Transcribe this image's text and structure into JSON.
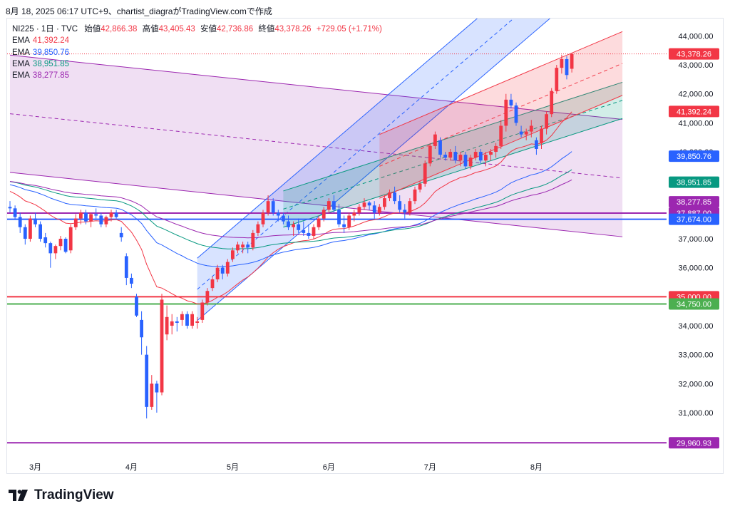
{
  "header": {
    "caption": "8月 18, 2025 06:17 UTC+9、chartist_diagraがTradingView.comで作成"
  },
  "legend": {
    "symbol": "NI225 · 1日 · TVC",
    "ohlc": [
      {
        "label": "始値",
        "value": "42,866.38"
      },
      {
        "label": "高値",
        "value": "43,405.43"
      },
      {
        "label": "安値",
        "value": "42,736.86"
      },
      {
        "label": "終値",
        "value": "43,378.26"
      }
    ],
    "change": "+729.05 (+1.71%)",
    "emas": [
      {
        "label": "EMA",
        "value": "41,392.24",
        "color": "#f23645"
      },
      {
        "label": "EMA",
        "value": "39,850.76",
        "color": "#2962ff"
      },
      {
        "label": "EMA",
        "value": "38,951.85",
        "color": "#089981"
      },
      {
        "label": "EMA",
        "value": "38,277.85",
        "color": "#9c27b0"
      }
    ]
  },
  "brand": {
    "logo_text": "TradingView"
  },
  "chart_data": {
    "type": "candlestick",
    "symbol": "NI225",
    "interval": "1日",
    "ylim": [
      29500,
      44600
    ],
    "y_ticks": [
      31000,
      32000,
      33000,
      34000,
      35000,
      36000,
      37000,
      38000,
      39000,
      40000,
      41000,
      42000,
      43000,
      44000
    ],
    "y_tick_labels": [
      "31,000.00",
      "32,000.00",
      "33,000.00",
      "34,000.00",
      "35,000.00",
      "36,000.00",
      "37,000.00",
      "38,000.00",
      "39,000.00",
      "40,000.00",
      "41,000.00",
      "42,000.00",
      "43,000.00",
      "44,000.00"
    ],
    "x_labels": [
      {
        "label": "3月",
        "bar": 5
      },
      {
        "label": "4月",
        "bar": 24
      },
      {
        "label": "5月",
        "bar": 44
      },
      {
        "label": "6月",
        "bar": 63
      },
      {
        "label": "7月",
        "bar": 83
      },
      {
        "label": "8月",
        "bar": 104
      }
    ],
    "candles": [
      [
        38100,
        38300,
        37900,
        38050
      ],
      [
        38050,
        38150,
        37650,
        37750
      ],
      [
        37750,
        37900,
        37200,
        37400
      ],
      [
        37400,
        37500,
        36800,
        37000
      ],
      [
        37000,
        37800,
        36900,
        37700
      ],
      [
        37700,
        37900,
        37400,
        37500
      ],
      [
        37500,
        37600,
        36900,
        37000
      ],
      [
        37050,
        37200,
        36700,
        36850
      ],
      [
        36850,
        36900,
        36000,
        36500
      ],
      [
        36500,
        36800,
        36300,
        36750
      ],
      [
        36750,
        37100,
        36600,
        37000
      ],
      [
        37000,
        37050,
        36500,
        36550
      ],
      [
        36600,
        37500,
        36500,
        37400
      ],
      [
        37400,
        37850,
        37300,
        37700
      ],
      [
        37700,
        38000,
        37500,
        37900
      ],
      [
        37900,
        38000,
        37500,
        37600
      ],
      [
        37600,
        37900,
        37400,
        37850
      ],
      [
        37850,
        38050,
        37700,
        37800
      ],
      [
        37800,
        37900,
        37400,
        37500
      ],
      [
        37500,
        37800,
        37400,
        37750
      ],
      [
        37750,
        38000,
        37600,
        37900
      ],
      [
        37900,
        38000,
        37700,
        37750
      ],
      [
        37200,
        37400,
        36900,
        37050
      ],
      [
        36400,
        36500,
        35400,
        35650
      ],
      [
        35650,
        35800,
        35300,
        35450
      ],
      [
        35000,
        35100,
        34300,
        34350
      ],
      [
        34200,
        34500,
        33000,
        33600
      ],
      [
        33000,
        33300,
        30800,
        31200
      ],
      [
        31200,
        32300,
        31100,
        32000
      ],
      [
        32000,
        32100,
        31000,
        31700
      ],
      [
        31700,
        35100,
        31600,
        34900
      ],
      [
        33700,
        34700,
        33500,
        34300
      ],
      [
        34000,
        34400,
        33700,
        34150
      ],
      [
        34150,
        34300,
        33800,
        34100
      ],
      [
        34200,
        34500,
        34000,
        34400
      ],
      [
        34400,
        34500,
        33900,
        34000
      ],
      [
        34000,
        34500,
        33900,
        34400
      ],
      [
        34100,
        34300,
        33900,
        34150
      ],
      [
        34200,
        34900,
        34100,
        34800
      ],
      [
        34800,
        35300,
        34700,
        35200
      ],
      [
        35300,
        35700,
        35200,
        35600
      ],
      [
        35600,
        36100,
        35500,
        36000
      ],
      [
        36000,
        36100,
        35600,
        35800
      ],
      [
        35800,
        36300,
        35700,
        36200
      ],
      [
        36300,
        36700,
        36200,
        36600
      ],
      [
        36600,
        36900,
        36500,
        36800
      ],
      [
        36700,
        36900,
        36500,
        36800
      ],
      [
        36800,
        36900,
        36500,
        36700
      ],
      [
        36700,
        37300,
        36600,
        37200
      ],
      [
        37200,
        37600,
        37100,
        37500
      ],
      [
        37500,
        38000,
        37400,
        37900
      ],
      [
        37900,
        38500,
        37800,
        38300
      ],
      [
        38300,
        38400,
        37800,
        37900
      ],
      [
        37900,
        38000,
        37600,
        37800
      ],
      [
        37800,
        37900,
        37500,
        37600
      ],
      [
        37600,
        37800,
        37300,
        37400
      ],
      [
        37400,
        37600,
        37100,
        37500
      ],
      [
        37500,
        37700,
        37200,
        37300
      ],
      [
        37300,
        37600,
        37100,
        37200
      ],
      [
        37200,
        37500,
        37000,
        37100
      ],
      [
        37100,
        37500,
        37000,
        37400
      ],
      [
        37400,
        37800,
        37300,
        37700
      ],
      [
        37700,
        38100,
        37600,
        38000
      ],
      [
        38000,
        38400,
        37900,
        38300
      ],
      [
        38300,
        38500,
        37900,
        38000
      ],
      [
        38000,
        38200,
        37400,
        37500
      ],
      [
        37500,
        37800,
        37200,
        37400
      ],
      [
        37400,
        37900,
        37300,
        37800
      ],
      [
        37800,
        38000,
        37600,
        37900
      ],
      [
        37900,
        38200,
        37800,
        38100
      ],
      [
        38100,
        38400,
        38000,
        38250
      ],
      [
        38250,
        38300,
        38000,
        38150
      ],
      [
        38150,
        38300,
        37700,
        37900
      ],
      [
        37900,
        38200,
        37800,
        38100
      ],
      [
        38100,
        38500,
        38000,
        38400
      ],
      [
        38400,
        38700,
        38300,
        38600
      ],
      [
        38600,
        38800,
        38200,
        38300
      ],
      [
        38300,
        38500,
        37900,
        38000
      ],
      [
        38000,
        38200,
        37700,
        37900
      ],
      [
        37900,
        38400,
        37800,
        38300
      ],
      [
        38300,
        38800,
        38200,
        38700
      ],
      [
        38700,
        39000,
        38600,
        38900
      ],
      [
        38900,
        39700,
        38800,
        39600
      ],
      [
        39600,
        40300,
        39500,
        40200
      ],
      [
        40200,
        40700,
        40100,
        40600
      ],
      [
        40400,
        40500,
        39800,
        39900
      ],
      [
        39900,
        40000,
        39700,
        39800
      ],
      [
        39800,
        40100,
        39700,
        40000
      ],
      [
        40000,
        40200,
        39600,
        39700
      ],
      [
        39700,
        40000,
        39500,
        39900
      ],
      [
        39900,
        40000,
        39400,
        39500
      ],
      [
        39500,
        39900,
        39400,
        39800
      ],
      [
        39800,
        40100,
        39700,
        40000
      ],
      [
        40000,
        40100,
        39600,
        39700
      ],
      [
        39700,
        40000,
        39500,
        39900
      ],
      [
        39900,
        40100,
        39700,
        40000
      ],
      [
        40000,
        40300,
        39800,
        40200
      ],
      [
        40200,
        41100,
        40100,
        40900
      ],
      [
        40900,
        42000,
        40700,
        41800
      ],
      [
        41800,
        42000,
        41500,
        41600
      ],
      [
        41600,
        41700,
        40900,
        41000
      ],
      [
        40700,
        40900,
        40500,
        40600
      ],
      [
        40600,
        40800,
        40400,
        40700
      ],
      [
        40700,
        41100,
        40500,
        40900
      ],
      [
        40400,
        40500,
        39900,
        40100
      ],
      [
        40300,
        40900,
        40100,
        40800
      ],
      [
        40800,
        41400,
        40600,
        41300
      ],
      [
        41300,
        42200,
        41200,
        42100
      ],
      [
        42100,
        43000,
        42000,
        42900
      ],
      [
        42900,
        43350,
        42700,
        43200
      ],
      [
        43200,
        43300,
        42500,
        42650
      ],
      [
        42866.38,
        43405.43,
        42736.86,
        43378.26
      ]
    ],
    "price_labels": [
      {
        "value": 43378.26,
        "text": "43,378.26",
        "color": "#f23645"
      },
      {
        "value": 41392.24,
        "text": "41,392.24",
        "color": "#f23645"
      },
      {
        "value": 39850.76,
        "text": "39,850.76",
        "color": "#2962ff"
      },
      {
        "value": 38951.85,
        "text": "38,951.85",
        "color": "#089981"
      },
      {
        "value": 38277.85,
        "text": "38,277.85",
        "color": "#9c27b0"
      },
      {
        "value": 37887.0,
        "text": "37,887.00",
        "color": "#9c27b0"
      },
      {
        "value": 37674.0,
        "text": "37,674.00",
        "color": "#2962ff"
      },
      {
        "value": 35000.0,
        "text": "35,000.00",
        "color": "#f23645"
      },
      {
        "value": 34750.0,
        "text": "34,750.00",
        "color": "#4caf50"
      },
      {
        "value": 29960.93,
        "text": "29,960.93",
        "color": "#9c27b0"
      }
    ],
    "horizontal_lines": [
      {
        "value": 37887,
        "color": "#9c27b0"
      },
      {
        "value": 37674,
        "color": "#2962ff"
      },
      {
        "value": 35000,
        "color": "#f23645"
      },
      {
        "value": 34750,
        "color": "#4caf50"
      },
      {
        "value": 29960.93,
        "color": "#9c27b0"
      }
    ],
    "channels": [
      {
        "name": "purple-channel",
        "color": "#9c27b0",
        "fill": "rgba(156,39,176,0.15)",
        "from": {
          "bar": 0,
          "value": 39290
        },
        "to": {
          "bar": 121,
          "value": 37070
        },
        "width": 4050
      },
      {
        "name": "blue-channel",
        "color": "#2962ff",
        "fill": "rgba(41,98,255,0.18)",
        "from": {
          "bar": 37,
          "value": 34180
        },
        "to": {
          "bar": 108,
          "value": 44800
        },
        "width": 2150
      },
      {
        "name": "green-channel",
        "color": "#089981",
        "fill": "rgba(8,153,129,0.18)",
        "from": {
          "bar": 54,
          "value": 37400
        },
        "to": {
          "bar": 121,
          "value": 41150
        },
        "width": 1250
      },
      {
        "name": "red-channel",
        "color": "#f23645",
        "fill": "rgba(242,54,69,0.18)",
        "from": {
          "bar": 73,
          "value": 38400
        },
        "to": {
          "bar": 121,
          "value": 41950
        },
        "width": 2200
      }
    ]
  }
}
